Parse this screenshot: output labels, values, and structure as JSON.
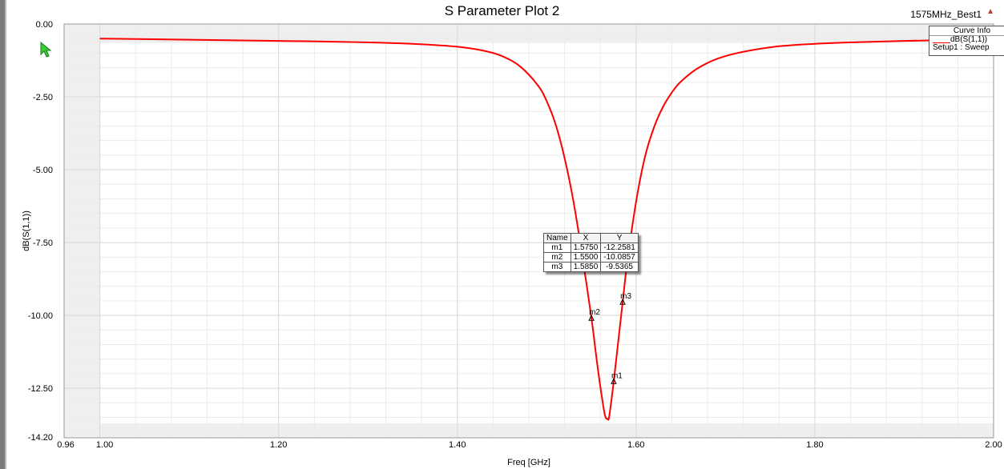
{
  "title": "S Parameter Plot 2",
  "design_name": "1575MHz_Best1",
  "legend": {
    "title": "Curve Info",
    "entry": "dB(S(1,1))",
    "setup": "Setup1 : Sweep"
  },
  "marker_table": {
    "headers": [
      "Name",
      "X",
      "Y"
    ],
    "rows": [
      [
        "m1",
        "1.5750",
        "-12.2581"
      ],
      [
        "m2",
        "1.5500",
        "-10.0857"
      ],
      [
        "m3",
        "1.5850",
        "-9.5365"
      ]
    ]
  },
  "colors": {
    "curve": "#ff0000",
    "grid": "#d9d9d9",
    "plot_margin_bg": "#efefef"
  },
  "chart_data": {
    "type": "line",
    "title": "S Parameter Plot 2",
    "xlabel": "Freq [GHz]",
    "ylabel": "dB(S(1,1))",
    "xlim": [
      0.96,
      2.0
    ],
    "ylim": [
      -14.2,
      0.0
    ],
    "x_ticks": [
      "0.96",
      "1.00",
      "1.20",
      "1.40",
      "1.60",
      "1.80",
      "2.00"
    ],
    "y_ticks": [
      "0.00",
      "-2.50",
      "-5.00",
      "-7.50",
      "-10.00",
      "-12.50",
      "-14.20"
    ],
    "grid": true,
    "legend_position": "top-right",
    "series": [
      {
        "name": "dB(S(1,1))",
        "x": [
          1.0,
          1.05,
          1.1,
          1.15,
          1.2,
          1.25,
          1.3,
          1.35,
          1.4,
          1.43,
          1.45,
          1.47,
          1.49,
          1.5,
          1.51,
          1.52,
          1.53,
          1.54,
          1.55,
          1.555,
          1.56,
          1.565,
          1.568,
          1.57,
          1.575,
          1.58,
          1.585,
          1.59,
          1.6,
          1.61,
          1.62,
          1.63,
          1.64,
          1.65,
          1.67,
          1.7,
          1.75,
          1.8,
          1.85,
          1.9,
          1.95,
          2.0
        ],
        "y": [
          -0.5,
          -0.52,
          -0.54,
          -0.56,
          -0.58,
          -0.6,
          -0.63,
          -0.68,
          -0.78,
          -0.92,
          -1.1,
          -1.45,
          -2.1,
          -2.65,
          -3.45,
          -4.6,
          -6.1,
          -8.0,
          -10.08,
          -11.3,
          -12.45,
          -13.4,
          -13.55,
          -13.45,
          -12.26,
          -10.9,
          -9.54,
          -8.2,
          -6.1,
          -4.55,
          -3.55,
          -2.85,
          -2.35,
          -1.98,
          -1.5,
          -1.1,
          -0.8,
          -0.68,
          -0.62,
          -0.58,
          -0.55,
          -0.53
        ]
      }
    ],
    "markers": [
      {
        "name": "m1",
        "x": 1.575,
        "y": -12.2581
      },
      {
        "name": "m2",
        "x": 1.55,
        "y": -10.0857
      },
      {
        "name": "m3",
        "x": 1.585,
        "y": -9.5365
      }
    ]
  }
}
